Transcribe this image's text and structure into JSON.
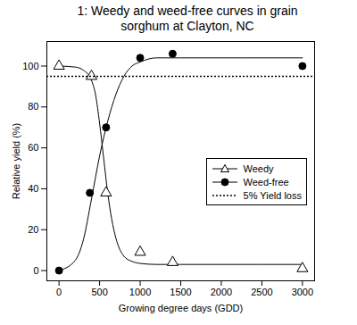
{
  "chart_data": {
    "type": "scatter",
    "title": "1: Weedy and weed-free curves in grain sorghum at Clayton, NC",
    "x_label": "Growing degree days (GDD)",
    "y_label": "Relative yield (%)",
    "xlim": [
      -150,
      3150
    ],
    "ylim": [
      -5,
      112
    ],
    "xticks": [
      0,
      500,
      1000,
      1500,
      2000,
      2500,
      3000
    ],
    "yticks": [
      0,
      20,
      40,
      60,
      80,
      100
    ],
    "legend": "right",
    "series": [
      {
        "name": "Weedy",
        "color": "#000000",
        "marker": "triangle",
        "x": [
          0,
          400,
          580,
          1000,
          1400,
          3000
        ],
        "values": [
          100,
          95,
          38,
          9,
          4,
          1
        ],
        "fit_x": [
          0,
          200,
          300,
          400,
          450,
          500,
          550,
          600,
          650,
          700,
          800,
          900,
          1000,
          1200,
          1500,
          2000,
          3000
        ],
        "fit_values": [
          100,
          99.5,
          98,
          93,
          86,
          72,
          55,
          38,
          25,
          16,
          7,
          4.5,
          3.5,
          3,
          3,
          3,
          3
        ]
      },
      {
        "name": "Weed-free",
        "color": "#000000",
        "marker": "circle",
        "x": [
          0,
          380,
          580,
          1000,
          1400,
          3000
        ],
        "values": [
          0,
          38,
          70,
          104,
          106,
          100
        ],
        "fit_x": [
          0,
          200,
          300,
          400,
          500,
          600,
          700,
          800,
          900,
          1000,
          1200,
          1500,
          3000
        ],
        "fit_values": [
          0,
          5,
          15,
          35,
          56,
          73,
          86,
          95,
          100,
          102,
          104,
          104,
          104
        ]
      },
      {
        "name": "5% Yield loss",
        "type": "hline",
        "color": "#000000",
        "line_style": "dotted",
        "values": [
          95
        ]
      }
    ]
  }
}
